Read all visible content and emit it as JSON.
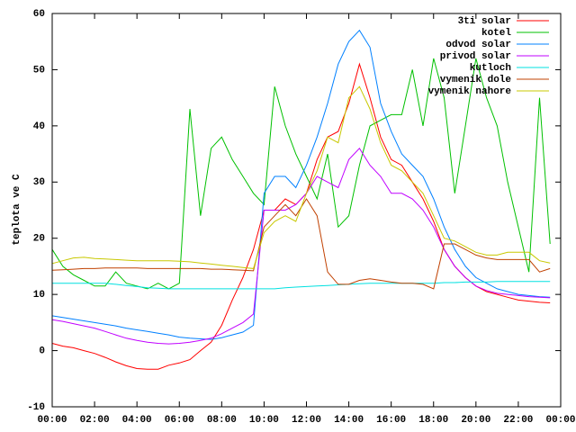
{
  "chart_data": {
    "type": "line",
    "ylabel": "teplota ve C",
    "x": [
      0,
      0.5,
      1,
      1.5,
      2,
      2.5,
      3,
      3.5,
      4,
      4.5,
      5,
      5.5,
      6,
      6.5,
      7,
      7.5,
      8,
      8.5,
      9,
      9.5,
      10,
      10.5,
      11,
      11.5,
      12,
      12.5,
      13,
      13.5,
      14,
      14.5,
      15,
      15.5,
      16,
      16.5,
      17,
      17.5,
      18,
      18.5,
      19,
      19.5,
      20,
      20.5,
      21,
      21.5,
      22,
      22.5,
      23,
      23.5
    ],
    "xlim": [
      0,
      24
    ],
    "xticks": [
      {
        "value": 0,
        "label": "00:00"
      },
      {
        "value": 2,
        "label": "02:00"
      },
      {
        "value": 4,
        "label": "04:00"
      },
      {
        "value": 6,
        "label": "06:00"
      },
      {
        "value": 8,
        "label": "08:00"
      },
      {
        "value": 10,
        "label": "10:00"
      },
      {
        "value": 12,
        "label": "12:00"
      },
      {
        "value": 14,
        "label": "14:00"
      },
      {
        "value": 16,
        "label": "16:00"
      },
      {
        "value": 18,
        "label": "18:00"
      },
      {
        "value": 20,
        "label": "20:00"
      },
      {
        "value": 22,
        "label": "22:00"
      },
      {
        "value": 24,
        "label": "00:00"
      }
    ],
    "ylim": [
      -10,
      60
    ],
    "yticks": [
      -10,
      0,
      10,
      20,
      30,
      40,
      50,
      60
    ],
    "legend": "top-right",
    "series": [
      {
        "name": "3ti solar",
        "color": "#ff0000",
        "values": [
          1.3,
          0.8,
          0.5,
          0,
          -0.5,
          -1.2,
          -2,
          -2.7,
          -3.2,
          -3.3,
          -3.3,
          -2.6,
          -2.2,
          -1.6,
          0,
          1.5,
          4.5,
          9,
          13,
          18,
          25,
          25,
          27,
          26,
          28,
          34,
          38,
          39,
          44,
          51,
          45,
          38,
          34,
          33,
          30,
          27,
          23,
          18,
          15,
          13,
          11.5,
          10.5,
          10,
          9.5,
          9,
          8.8,
          8.6,
          8.5
        ]
      },
      {
        "name": "kotel",
        "color": "#00c000",
        "values": [
          18,
          15,
          13.5,
          12.5,
          11.5,
          11.5,
          14,
          12,
          11.5,
          11,
          12,
          11,
          12,
          43,
          24,
          36,
          38,
          34,
          31,
          28,
          26,
          47,
          40,
          35,
          31,
          27,
          35,
          22,
          24,
          33,
          40,
          41,
          42,
          42,
          50,
          40,
          52,
          45,
          28,
          40,
          52,
          45,
          40,
          30,
          22,
          14,
          45,
          19
        ]
      },
      {
        "name": "odvod solar",
        "color": "#0080ff",
        "values": [
          6.2,
          5.9,
          5.6,
          5.3,
          5,
          4.7,
          4.4,
          4,
          3.7,
          3.4,
          3.1,
          2.8,
          2.4,
          2.2,
          2.1,
          2,
          2.3,
          2.8,
          3.3,
          4.5,
          28,
          31,
          31,
          29,
          33,
          38,
          44,
          51,
          55,
          57,
          54,
          44,
          39,
          35,
          33,
          31,
          27,
          22,
          18,
          15,
          13,
          12,
          11,
          10.5,
          10,
          9.8,
          9.6,
          9.5
        ]
      },
      {
        "name": "privod solar",
        "color": "#c000ff",
        "values": [
          5.5,
          5.2,
          4.8,
          4.4,
          4,
          3.4,
          2.8,
          2.2,
          1.8,
          1.5,
          1.3,
          1.2,
          1.3,
          1.5,
          1.8,
          2.2,
          3,
          4,
          5,
          6.5,
          25,
          25,
          25,
          26,
          28,
          31,
          30,
          29,
          34,
          36,
          33,
          31,
          28,
          28,
          27,
          25,
          22,
          18,
          15,
          13,
          11.5,
          10.7,
          10.2,
          10,
          9.8,
          9.6,
          9.5,
          9.4
        ]
      },
      {
        "name": "kutloch",
        "color": "#00e0e0",
        "values": [
          12,
          12,
          12,
          12,
          12,
          12,
          11.8,
          11.6,
          11.4,
          11.2,
          11.1,
          11,
          11,
          11,
          11,
          11,
          11,
          11,
          11,
          11,
          11,
          11,
          11.2,
          11.3,
          11.4,
          11.5,
          11.6,
          11.7,
          11.8,
          11.9,
          12,
          12,
          12,
          12,
          12,
          12,
          12,
          12.1,
          12.1,
          12.2,
          12.2,
          12.2,
          12.3,
          12.3,
          12.3,
          12.3,
          12.3,
          12.3
        ]
      },
      {
        "name": "vymenik dole",
        "color": "#c04000",
        "values": [
          14.3,
          14.4,
          14.5,
          14.6,
          14.6,
          14.7,
          14.7,
          14.7,
          14.7,
          14.6,
          14.6,
          14.6,
          14.6,
          14.6,
          14.6,
          14.5,
          14.5,
          14.4,
          14.3,
          14.2,
          22,
          24,
          26,
          24,
          27,
          24,
          14,
          11.8,
          11.8,
          12.5,
          12.8,
          12.5,
          12.2,
          12,
          12,
          11.8,
          11,
          19,
          19,
          18,
          17,
          16.5,
          16.2,
          16.2,
          16.2,
          16.2,
          14,
          14.6
        ]
      },
      {
        "name": "vymenik nahore",
        "color": "#c8c800",
        "values": [
          15.5,
          16,
          16.5,
          16.6,
          16.4,
          16.3,
          16.2,
          16.1,
          16,
          16,
          16,
          16,
          15.9,
          15.8,
          15.6,
          15.4,
          15.2,
          15,
          14.8,
          14.6,
          21,
          23,
          24,
          23,
          28,
          32,
          38,
          37,
          45,
          47,
          43,
          37,
          33,
          32,
          30,
          28,
          24,
          20,
          19.5,
          18.5,
          17.5,
          17,
          17,
          17.5,
          17.5,
          17.5,
          16,
          15.6
        ]
      }
    ]
  }
}
